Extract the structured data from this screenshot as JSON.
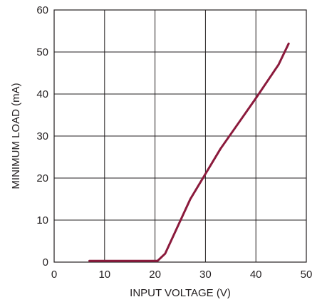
{
  "chart_data": {
    "type": "line",
    "xlabel": "INPUT VOLTAGE (V)",
    "ylabel": "MINIMUM LOAD (mA)",
    "xlim": [
      0,
      50
    ],
    "ylim": [
      0,
      60
    ],
    "x_ticks": [
      0,
      10,
      20,
      30,
      40,
      50
    ],
    "y_ticks": [
      0,
      10,
      20,
      30,
      40,
      50,
      60
    ],
    "grid": true,
    "series": [
      {
        "color": "#8b1a3c",
        "x": [
          7,
          20.5,
          22,
          24.5,
          27,
          30,
          33,
          36.5,
          40,
          44.5,
          46.5
        ],
        "y": [
          0.3,
          0.3,
          2,
          8.5,
          15,
          21,
          27,
          33,
          39,
          47,
          52
        ]
      }
    ]
  }
}
